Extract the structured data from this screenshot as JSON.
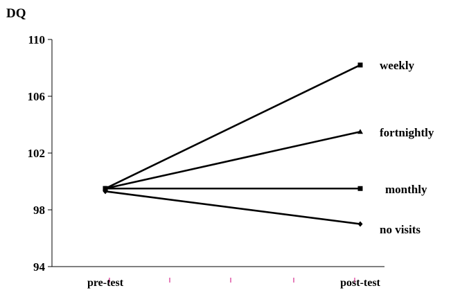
{
  "chart_data": {
    "type": "line",
    "title": "",
    "xlabel": "",
    "ylabel": "DQ",
    "categories": [
      "pre-test",
      "post-test"
    ],
    "ylim": [
      94,
      110
    ],
    "yticks": [
      94,
      98,
      102,
      106,
      110
    ],
    "grid": false,
    "legend": "inline labels at right end of lines",
    "series": [
      {
        "name": "weekly",
        "values": [
          99.5,
          108.2
        ],
        "marker": "square"
      },
      {
        "name": "fortnightly",
        "values": [
          99.5,
          103.5
        ],
        "marker": "triangle"
      },
      {
        "name": "monthly",
        "values": [
          99.5,
          99.5
        ],
        "marker": "square"
      },
      {
        "name": "no visits",
        "values": [
          99.3,
          97.0
        ],
        "marker": "diamond"
      }
    ],
    "colors": {
      "line": "#000000",
      "minor_tick": "#cc0077"
    }
  }
}
